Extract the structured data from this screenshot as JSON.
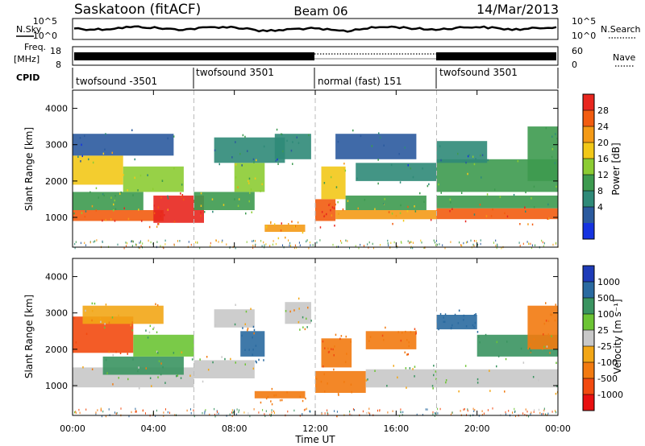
{
  "header": {
    "station": "Saskatoon (fitACF)",
    "beam": "Beam 06",
    "date": "14/Mar/2013"
  },
  "noise_panel": {
    "left_label": "N.Sky",
    "right_label": "N.Search",
    "left_ticks": [
      "10^5",
      "10^0"
    ],
    "right_ticks": [
      "10^5",
      "10^0"
    ]
  },
  "freq_panel": {
    "left_label_1": "Freq.",
    "left_label_2": "[MHz]",
    "right_label": "Nave",
    "left_ticks": [
      "18",
      "8"
    ],
    "right_ticks": [
      "60",
      "0"
    ]
  },
  "cpid": {
    "label": "CPID",
    "segments": [
      {
        "start_h": 0,
        "end_h": 6,
        "text": "twofsound -3501"
      },
      {
        "start_h": 6,
        "end_h": 12,
        "text": "twofsound 3501"
      },
      {
        "start_h": 12,
        "end_h": 18,
        "text": "normal (fast) 151"
      },
      {
        "start_h": 18,
        "end_h": 24,
        "text": "twofsound 3501"
      }
    ]
  },
  "power_panel": {
    "ylabel": "Slant Range [km]",
    "cbar_label": "Power [dB]",
    "cbar_ticks": [
      "28",
      "24",
      "20",
      "16",
      "12",
      "8",
      "4"
    ],
    "cbar_colors": [
      "#e8261e",
      "#f25c10",
      "#f49a16",
      "#f2c818",
      "#8ccc33",
      "#3d9a4f",
      "#2f8a78",
      "#2b5a9e",
      "#1533e0"
    ]
  },
  "velocity_panel": {
    "ylabel": "Slant Range [km]",
    "cbar_label": "Velocity [m s⁻¹]",
    "cbar_ticks": [
      "1000",
      "500",
      "100",
      "25",
      "-25",
      "-100",
      "-500",
      "-1000"
    ],
    "cbar_colors": [
      "#1e3bb8",
      "#2a6aa0",
      "#3a9460",
      "#6cc434",
      "#c8c8c8",
      "#f2a616",
      "#f27a10",
      "#f24a10",
      "#e81010"
    ]
  },
  "x_axis": {
    "label": "Time UT",
    "ticks": [
      "00:00",
      "04:00",
      "08:00",
      "12:00",
      "16:00",
      "20:00",
      "00:00"
    ]
  },
  "chart_data": {
    "type": "heatmap",
    "title": "Saskatoon (fitACF) Beam 06 14/Mar/2013",
    "xlabel": "Time UT",
    "ylabel": "Slant Range [km]",
    "xlim_hours": [
      0,
      24
    ],
    "ylim_km": [
      180,
      4500
    ],
    "yticks_km": [
      1000,
      2000,
      3000,
      4000
    ],
    "xticks": [
      "00:00",
      "04:00",
      "08:00",
      "12:00",
      "16:00",
      "20:00",
      "00:00"
    ],
    "mode_change_hours": [
      6,
      12,
      18
    ],
    "power_db_range": [
      0,
      32
    ],
    "velocity_range": [
      -1000,
      1000
    ],
    "power_features": [
      {
        "t0": 0.0,
        "t1": 4.5,
        "r0": 900,
        "r1": 1200,
        "db": 26
      },
      {
        "t0": 4.0,
        "t1": 6.5,
        "r0": 850,
        "r1": 1600,
        "db": 29
      },
      {
        "t0": 0.0,
        "t1": 3.5,
        "r0": 1200,
        "r1": 1700,
        "db": 14
      },
      {
        "t0": 0.0,
        "t1": 2.5,
        "r0": 1900,
        "r1": 2700,
        "db": 20
      },
      {
        "t0": 2.5,
        "t1": 5.5,
        "r0": 1700,
        "r1": 2400,
        "db": 15
      },
      {
        "t0": 0.0,
        "t1": 5.0,
        "r0": 2700,
        "r1": 3300,
        "db": 7
      },
      {
        "t0": 6.0,
        "t1": 9.0,
        "r0": 1200,
        "r1": 1700,
        "db": 14
      },
      {
        "t0": 8.0,
        "t1": 9.5,
        "r0": 1700,
        "r1": 2500,
        "db": 17
      },
      {
        "t0": 7.0,
        "t1": 10.5,
        "r0": 2500,
        "r1": 3200,
        "db": 8
      },
      {
        "t0": 10.0,
        "t1": 11.8,
        "r0": 2600,
        "r1": 3300,
        "db": 9
      },
      {
        "t0": 9.5,
        "t1": 11.5,
        "r0": 600,
        "r1": 800,
        "db": 24
      },
      {
        "t0": 12.0,
        "t1": 13.0,
        "r0": 900,
        "r1": 1500,
        "db": 28
      },
      {
        "t0": 12.3,
        "t1": 13.5,
        "r0": 1500,
        "r1": 2400,
        "db": 18
      },
      {
        "t0": 13.0,
        "t1": 18.0,
        "r0": 950,
        "r1": 1200,
        "db": 24
      },
      {
        "t0": 13.5,
        "t1": 17.5,
        "r0": 1200,
        "r1": 1600,
        "db": 14
      },
      {
        "t0": 14.0,
        "t1": 18.0,
        "r0": 2000,
        "r1": 2500,
        "db": 10
      },
      {
        "t0": 13.0,
        "t1": 17.0,
        "r0": 2600,
        "r1": 3300,
        "db": 7
      },
      {
        "t0": 18.0,
        "t1": 24.0,
        "r0": 950,
        "r1": 1250,
        "db": 27
      },
      {
        "t0": 18.0,
        "t1": 24.0,
        "r0": 1250,
        "r1": 1600,
        "db": 13
      },
      {
        "t0": 18.0,
        "t1": 24.0,
        "r0": 1700,
        "r1": 2600,
        "db": 14
      },
      {
        "t0": 18.0,
        "t1": 20.5,
        "r0": 2500,
        "r1": 3100,
        "db": 8
      },
      {
        "t0": 22.5,
        "t1": 24.0,
        "r0": 2000,
        "r1": 3500,
        "db": 11
      }
    ],
    "velocity_features": [
      {
        "t0": 0.0,
        "t1": 3.0,
        "r0": 1900,
        "r1": 2900,
        "v": -550
      },
      {
        "t0": 0.0,
        "t1": 6.0,
        "r0": 950,
        "r1": 1500,
        "v": 0
      },
      {
        "t0": 1.5,
        "t1": 5.5,
        "r0": 1300,
        "r1": 1800,
        "v": 120
      },
      {
        "t0": 3.0,
        "t1": 6.0,
        "r0": 1800,
        "r1": 2400,
        "v": 40
      },
      {
        "t0": 0.5,
        "t1": 4.5,
        "r0": 2700,
        "r1": 3200,
        "v": -60
      },
      {
        "t0": 6.0,
        "t1": 9.0,
        "r0": 1200,
        "r1": 1700,
        "v": 0
      },
      {
        "t0": 8.3,
        "t1": 9.5,
        "r0": 1800,
        "r1": 2500,
        "v": 700
      },
      {
        "t0": 7.0,
        "t1": 9.0,
        "r0": 2600,
        "r1": 3100,
        "v": 0
      },
      {
        "t0": 10.5,
        "t1": 11.8,
        "r0": 2700,
        "r1": 3300,
        "v": 0
      },
      {
        "t0": 9.0,
        "t1": 11.5,
        "r0": 650,
        "r1": 850,
        "v": -300
      },
      {
        "t0": 12.0,
        "t1": 14.5,
        "r0": 800,
        "r1": 1400,
        "v": -300
      },
      {
        "t0": 12.3,
        "t1": 13.8,
        "r0": 1500,
        "r1": 2300,
        "v": -500
      },
      {
        "t0": 14.5,
        "t1": 18.0,
        "r0": 950,
        "r1": 1450,
        "v": 0
      },
      {
        "t0": 14.5,
        "t1": 17.0,
        "r0": 2000,
        "r1": 2500,
        "v": -400
      },
      {
        "t0": 18.0,
        "t1": 24.0,
        "r0": 950,
        "r1": 1450,
        "v": 0
      },
      {
        "t0": 18.0,
        "t1": 20.0,
        "r0": 2550,
        "r1": 2950,
        "v": 700
      },
      {
        "t0": 20.0,
        "t1": 24.0,
        "r0": 1800,
        "r1": 2400,
        "v": 120
      },
      {
        "t0": 22.5,
        "t1": 24.0,
        "r0": 2000,
        "r1": 3200,
        "v": -400
      }
    ]
  }
}
